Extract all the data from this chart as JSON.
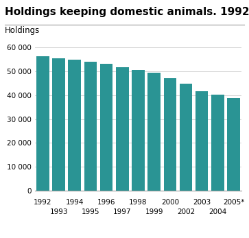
{
  "title": "Holdings keeping domestic animals. 1992-2005*",
  "ylabel": "Holdings",
  "categories": [
    "1992",
    "1993",
    "1994",
    "1995",
    "1996",
    "1997",
    "1998",
    "1999",
    "2000",
    "2002",
    "2003",
    "2004",
    "2005*"
  ],
  "values": [
    56500,
    55500,
    54800,
    54000,
    53200,
    51800,
    50600,
    49500,
    47200,
    44800,
    41800,
    40200,
    38800
  ],
  "bar_color": "#2a9494",
  "ylim": [
    0,
    60000
  ],
  "yticks": [
    0,
    10000,
    20000,
    30000,
    40000,
    50000,
    60000
  ],
  "background_color": "#ffffff",
  "grid_color": "#cccccc",
  "title_fontsize": 11,
  "label_fontsize": 8.5,
  "tick_fontsize": 7.5
}
